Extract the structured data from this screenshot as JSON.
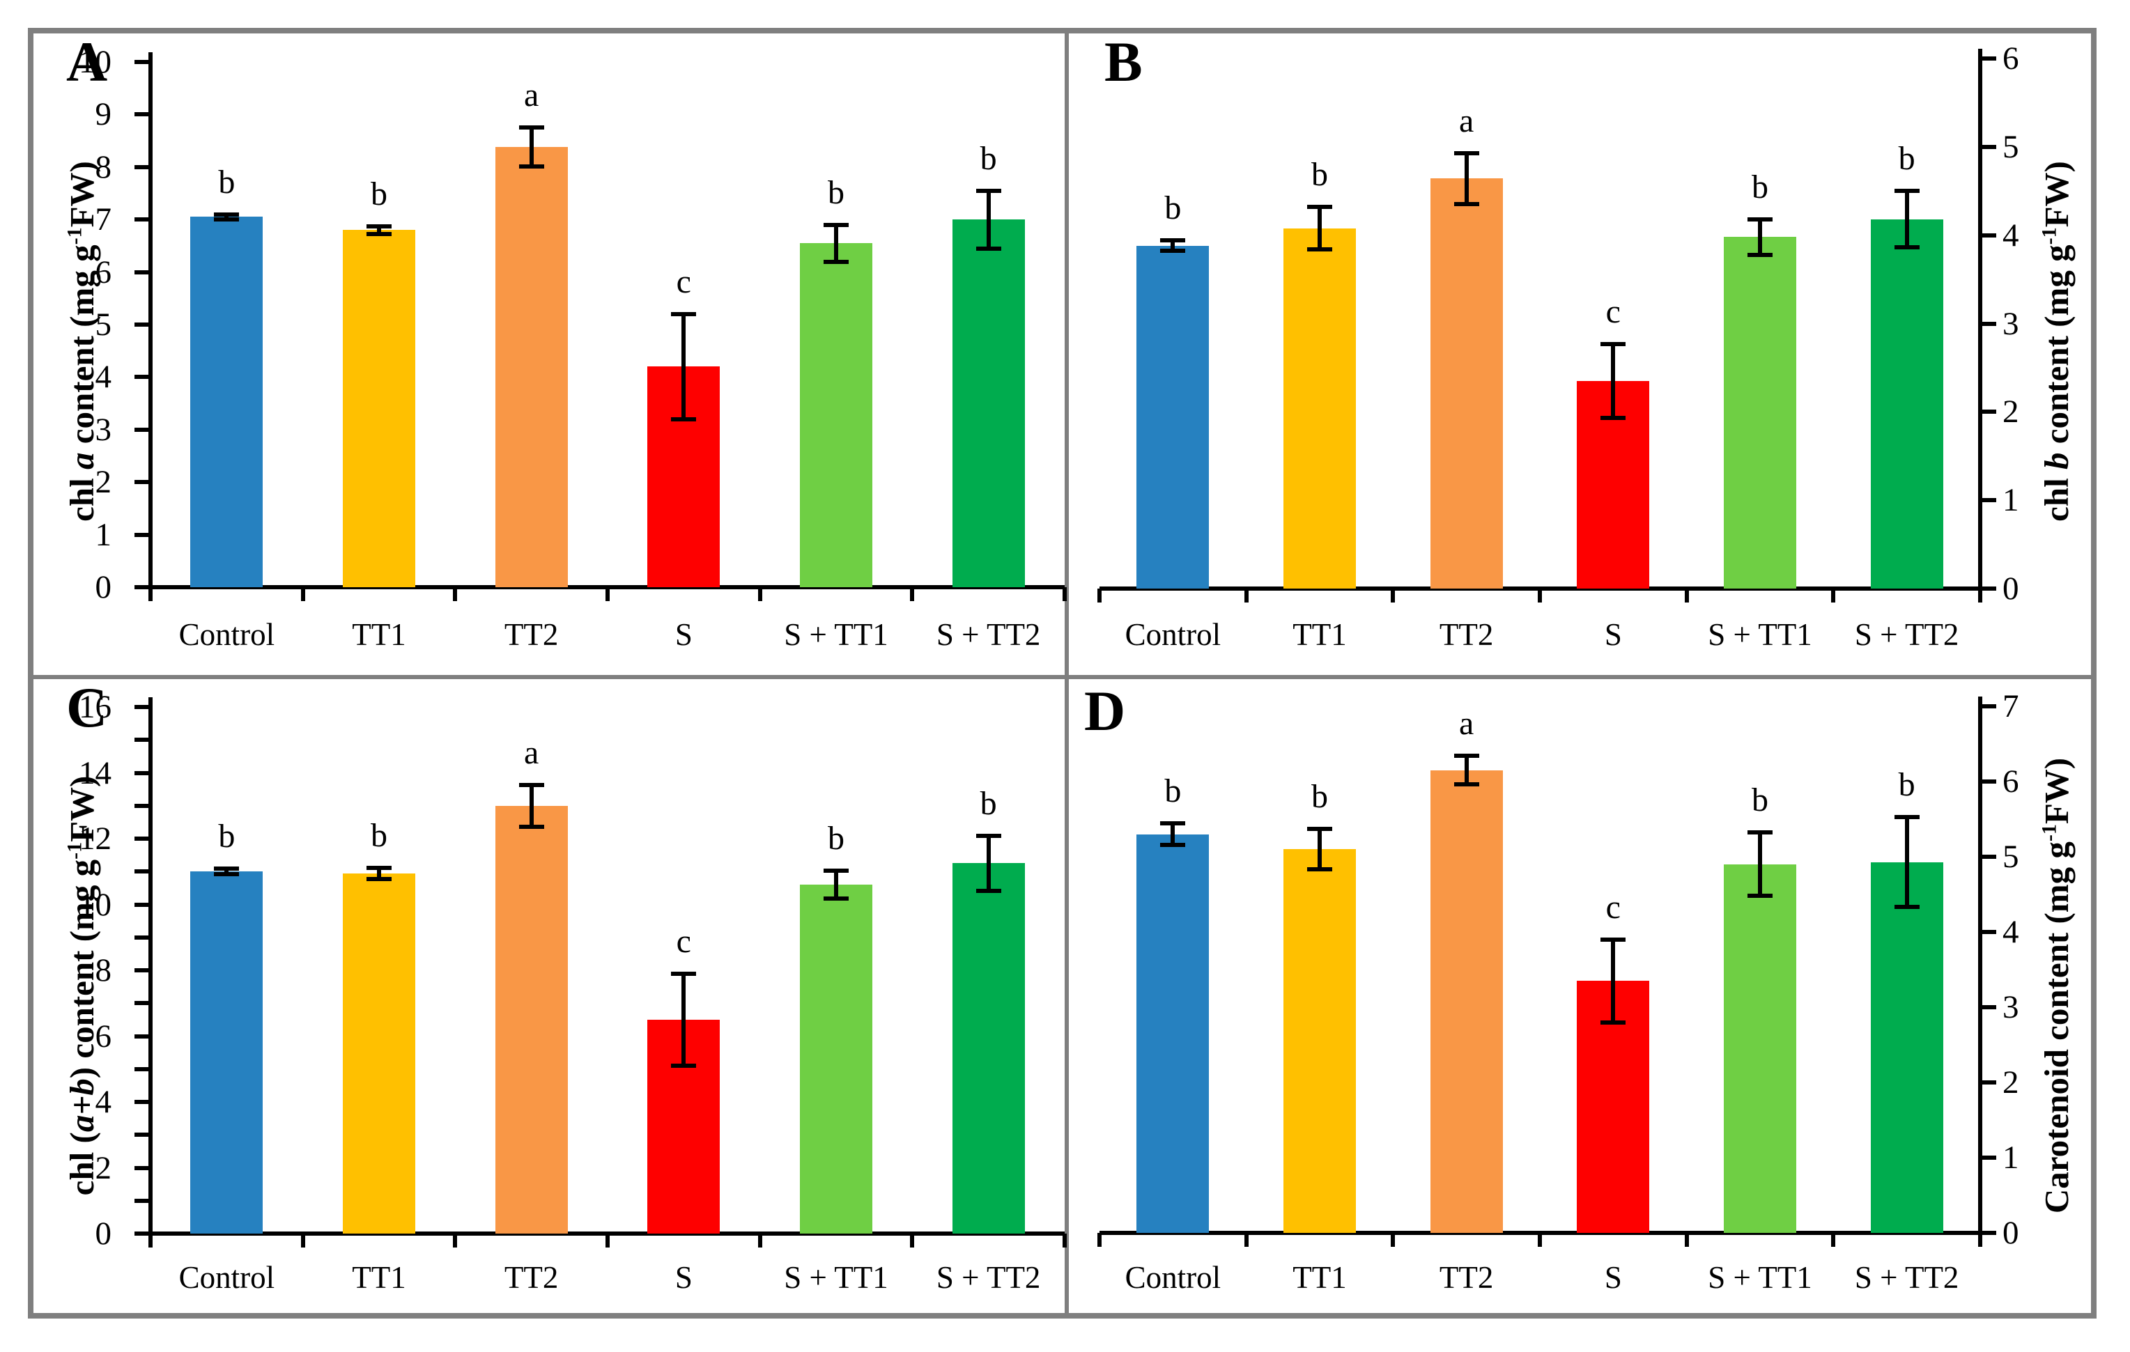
{
  "figure": {
    "background": "#ffffff",
    "border_color": "#7f7f7f",
    "axis_color": "#000000",
    "bar_colors": [
      "#2681C0",
      "#FFC000",
      "#F99746",
      "#FE0000",
      "#6FCF44",
      "#00AC4E"
    ]
  },
  "chart_data": [
    {
      "type": "bar",
      "panel_label": "A",
      "ylabel_segments": [
        {
          "text": "chl "
        },
        {
          "text": "a",
          "italic": true
        },
        {
          "text": " content  (mg g"
        },
        {
          "text": "-1",
          "sup": true
        },
        {
          "text": "FW)"
        }
      ],
      "categories": [
        "Control",
        "TT1",
        "TT2",
        "S",
        "S + TT1",
        "S + TT2"
      ],
      "values": [
        7.05,
        6.8,
        8.38,
        4.2,
        6.55,
        7.0
      ],
      "errors": [
        0.05,
        0.07,
        0.37,
        1.0,
        0.35,
        0.55
      ],
      "sig_letters": [
        "b",
        "b",
        "a",
        "c",
        "b",
        "b"
      ],
      "ylim": [
        0,
        10
      ],
      "tick_step": 1,
      "label_step": 1,
      "axis_side": "left",
      "grid": false,
      "legend": "none",
      "plot": {
        "l": 216,
        "r": 1528,
        "t": 89,
        "b": 843
      },
      "letter_pos": {
        "x": 95,
        "y": 48
      },
      "ytitle_pos": {
        "x": 118,
        "cy": 490
      },
      "xlabels_y": 885
    },
    {
      "type": "bar",
      "panel_label": "B",
      "ylabel_segments": [
        {
          "text": "chl "
        },
        {
          "text": "b",
          "italic": true
        },
        {
          "text": " content  (mg g"
        },
        {
          "text": "-1",
          "sup": true
        },
        {
          "text": "FW)"
        }
      ],
      "categories": [
        "Control",
        "TT1",
        "TT2",
        "S",
        "S + TT1",
        "S + TT2"
      ],
      "values": [
        3.88,
        4.08,
        4.64,
        2.35,
        3.98,
        4.18
      ],
      "errors": [
        0.06,
        0.24,
        0.29,
        0.42,
        0.2,
        0.32
      ],
      "sig_letters": [
        "b",
        "b",
        "a",
        "c",
        "b",
        "b"
      ],
      "ylim": [
        0,
        6
      ],
      "tick_step": 1,
      "label_step": 1,
      "axis_side": "right",
      "grid": false,
      "legend": "none",
      "plot": {
        "l": 1578,
        "r": 2842,
        "t": 84,
        "b": 845
      },
      "letter_pos": {
        "x": 1585,
        "y": 48
      },
      "ytitle_pos": {
        "x": 2952,
        "cy": 490
      },
      "xlabels_y": 885
    },
    {
      "type": "bar",
      "panel_label": "C",
      "ylabel_segments": [
        {
          "text": "chl ("
        },
        {
          "text": "a+b",
          "italic": true
        },
        {
          "text": ")  content (mg g"
        },
        {
          "text": "-1",
          "sup": true
        },
        {
          "text": "FW)"
        }
      ],
      "categories": [
        "Control",
        "TT1",
        "TT2",
        "S",
        "S + TT1",
        "S + TT2"
      ],
      "values": [
        11.0,
        10.95,
        13.0,
        6.5,
        10.6,
        11.25
      ],
      "errors": [
        0.08,
        0.17,
        0.63,
        1.4,
        0.43,
        0.83
      ],
      "sig_letters": [
        "b",
        "b",
        "a",
        "c",
        "b",
        "b"
      ],
      "ylim": [
        0,
        16
      ],
      "tick_step": 1,
      "label_step": 2,
      "axis_side": "left",
      "grid": false,
      "legend": "none",
      "plot": {
        "l": 216,
        "r": 1528,
        "t": 1015,
        "b": 1771
      },
      "letter_pos": {
        "x": 95,
        "y": 975
      },
      "ytitle_pos": {
        "x": 118,
        "cy": 1415
      },
      "xlabels_y": 1808
    },
    {
      "type": "bar",
      "panel_label": "D",
      "ylabel_segments": [
        {
          "text": "Carotenoid content (mg g"
        },
        {
          "text": "-1",
          "sup": true
        },
        {
          "text": "FW)"
        }
      ],
      "categories": [
        "Control",
        "TT1",
        "TT2",
        "S",
        "S + TT1",
        "S + TT2"
      ],
      "values": [
        5.3,
        5.1,
        6.15,
        3.35,
        4.9,
        4.93
      ],
      "errors": [
        0.14,
        0.27,
        0.19,
        0.55,
        0.42,
        0.6
      ],
      "sig_letters": [
        "b",
        "b",
        "a",
        "c",
        "b",
        "b"
      ],
      "ylim": [
        0,
        7
      ],
      "tick_step": 1,
      "label_step": 1,
      "axis_side": "right",
      "grid": false,
      "legend": "none",
      "plot": {
        "l": 1578,
        "r": 2842,
        "t": 1014,
        "b": 1770
      },
      "letter_pos": {
        "x": 1556,
        "y": 980
      },
      "ytitle_pos": {
        "x": 2952,
        "cy": 1415
      },
      "xlabels_y": 1808
    }
  ]
}
